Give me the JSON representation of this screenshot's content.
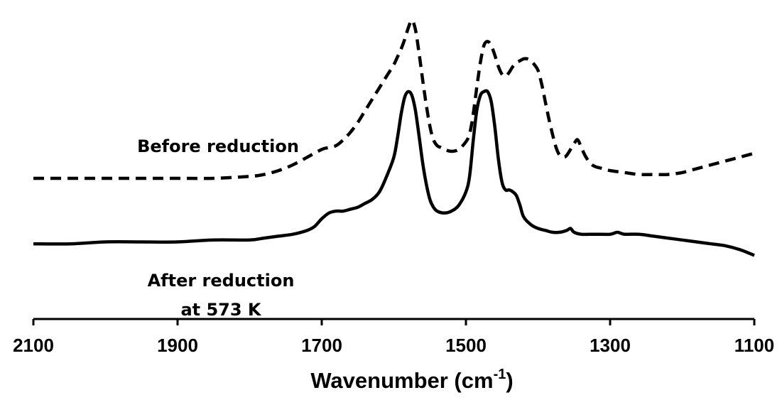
{
  "chart_data": {
    "type": "line",
    "title": "",
    "xlabel": "Wavenumber (cm-1)",
    "xlabel_main": "Wavenumber (cm",
    "xlabel_sup": "-1",
    "xlabel_close": ")",
    "ylabel": "",
    "x_reversed": true,
    "xlim": [
      2100,
      1100
    ],
    "ylim": [
      0,
      1.6
    ],
    "x_ticks": [
      "2100",
      "1900",
      "1700",
      "1500",
      "1300",
      "1100"
    ],
    "grid": false,
    "legend": "none",
    "annotations": [
      {
        "id": "before",
        "text": "Before reduction",
        "lines": [
          "Before reduction"
        ]
      },
      {
        "id": "after",
        "text": "After reduction at 573 K",
        "lines": [
          "After reduction",
          "at 573 K"
        ]
      }
    ],
    "series": [
      {
        "style": "dashed",
        "color": "#000000",
        "x": [
          2100,
          2050,
          2000,
          1950,
          1900,
          1850,
          1800,
          1780,
          1760,
          1740,
          1720,
          1700,
          1690,
          1680,
          1670,
          1660,
          1650,
          1640,
          1630,
          1620,
          1610,
          1600,
          1595,
          1590,
          1585,
          1580,
          1575,
          1570,
          1565,
          1560,
          1555,
          1550,
          1545,
          1540,
          1535,
          1530,
          1520,
          1510,
          1500,
          1495,
          1490,
          1485,
          1480,
          1475,
          1470,
          1465,
          1460,
          1455,
          1450,
          1445,
          1440,
          1435,
          1430,
          1425,
          1420,
          1415,
          1410,
          1405,
          1400,
          1395,
          1390,
          1385,
          1380,
          1375,
          1370,
          1365,
          1360,
          1350,
          1345,
          1340,
          1335,
          1330,
          1325,
          1320,
          1310,
          1300,
          1280,
          1260,
          1240,
          1220,
          1200,
          1180,
          1160,
          1140,
          1120,
          1100
        ],
        "y": [
          0.73,
          0.73,
          0.73,
          0.73,
          0.73,
          0.73,
          0.74,
          0.75,
          0.77,
          0.8,
          0.84,
          0.88,
          0.89,
          0.9,
          0.93,
          0.97,
          1.02,
          1.08,
          1.14,
          1.2,
          1.26,
          1.32,
          1.36,
          1.4,
          1.45,
          1.51,
          1.55,
          1.5,
          1.38,
          1.24,
          1.11,
          1.0,
          0.93,
          0.9,
          0.89,
          0.88,
          0.87,
          0.88,
          0.92,
          0.96,
          1.06,
          1.2,
          1.33,
          1.42,
          1.44,
          1.42,
          1.37,
          1.31,
          1.27,
          1.26,
          1.28,
          1.31,
          1.33,
          1.34,
          1.35,
          1.35,
          1.34,
          1.32,
          1.29,
          1.22,
          1.13,
          1.04,
          0.96,
          0.89,
          0.85,
          0.84,
          0.85,
          0.91,
          0.93,
          0.89,
          0.85,
          0.82,
          0.8,
          0.79,
          0.78,
          0.77,
          0.76,
          0.75,
          0.75,
          0.75,
          0.76,
          0.78,
          0.8,
          0.82,
          0.84,
          0.86
        ]
      },
      {
        "style": "solid",
        "color": "#000000",
        "x": [
          2100,
          2050,
          2000,
          1950,
          1900,
          1850,
          1800,
          1780,
          1760,
          1740,
          1720,
          1710,
          1700,
          1690,
          1680,
          1670,
          1660,
          1650,
          1640,
          1630,
          1620,
          1610,
          1600,
          1595,
          1590,
          1585,
          1580,
          1575,
          1570,
          1565,
          1560,
          1555,
          1550,
          1545,
          1540,
          1530,
          1520,
          1510,
          1500,
          1495,
          1490,
          1485,
          1480,
          1475,
          1470,
          1465,
          1460,
          1455,
          1450,
          1445,
          1440,
          1435,
          1430,
          1425,
          1420,
          1410,
          1400,
          1390,
          1380,
          1370,
          1360,
          1355,
          1350,
          1340,
          1320,
          1300,
          1290,
          1280,
          1260,
          1240,
          1220,
          1200,
          1180,
          1160,
          1140,
          1120,
          1100
        ],
        "y": [
          0.39,
          0.39,
          0.4,
          0.4,
          0.4,
          0.41,
          0.41,
          0.42,
          0.43,
          0.44,
          0.46,
          0.48,
          0.52,
          0.55,
          0.56,
          0.56,
          0.57,
          0.58,
          0.6,
          0.62,
          0.66,
          0.74,
          0.84,
          0.94,
          1.06,
          1.15,
          1.18,
          1.16,
          1.08,
          0.95,
          0.81,
          0.7,
          0.62,
          0.58,
          0.56,
          0.55,
          0.56,
          0.59,
          0.66,
          0.74,
          0.92,
          1.08,
          1.16,
          1.18,
          1.18,
          1.13,
          1.0,
          0.83,
          0.71,
          0.67,
          0.67,
          0.66,
          0.64,
          0.59,
          0.53,
          0.49,
          0.47,
          0.46,
          0.45,
          0.45,
          0.46,
          0.47,
          0.45,
          0.44,
          0.44,
          0.44,
          0.45,
          0.44,
          0.44,
          0.43,
          0.42,
          0.41,
          0.4,
          0.39,
          0.38,
          0.36,
          0.33
        ]
      }
    ]
  }
}
